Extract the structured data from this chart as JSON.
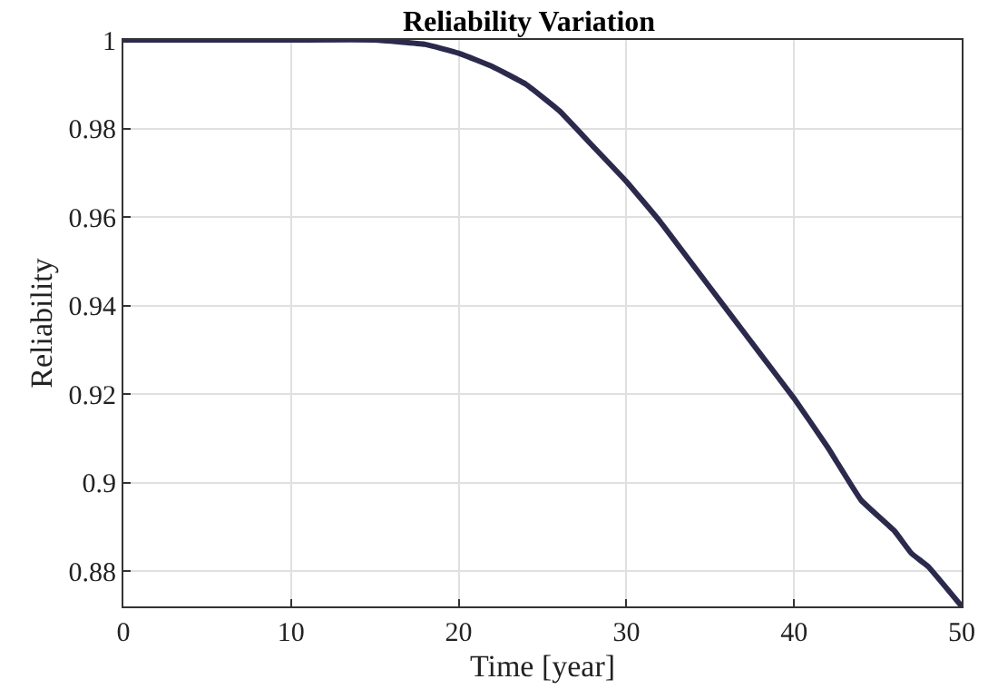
{
  "chart_data": {
    "type": "line",
    "title": "Reliability Variation",
    "xlabel": "Time [year]",
    "ylabel": "Reliability",
    "x": [
      0,
      5,
      10,
      15,
      18,
      20,
      22,
      24,
      26,
      28,
      30,
      32,
      34,
      36,
      38,
      40,
      42,
      44,
      46,
      47,
      48,
      50
    ],
    "series": [
      {
        "color": "#2b2a4c",
        "values": [
          1.0,
          1.0,
          1.0,
          1.0,
          0.999,
          0.997,
          0.994,
          0.99,
          0.984,
          0.976,
          0.968,
          0.959,
          0.949,
          0.939,
          0.929,
          0.919,
          0.908,
          0.896,
          0.889,
          0.884,
          0.881,
          0.872
        ]
      }
    ],
    "xlim": [
      0,
      50
    ],
    "xticks": [
      0,
      10,
      20,
      30,
      40,
      50
    ],
    "ylim": [
      0.872,
      1
    ],
    "yticks": [
      0.88,
      0.9,
      0.92,
      0.94,
      0.96,
      0.98,
      1
    ],
    "grid": true,
    "legend": false,
    "marker": "none",
    "line_style": "solid"
  }
}
